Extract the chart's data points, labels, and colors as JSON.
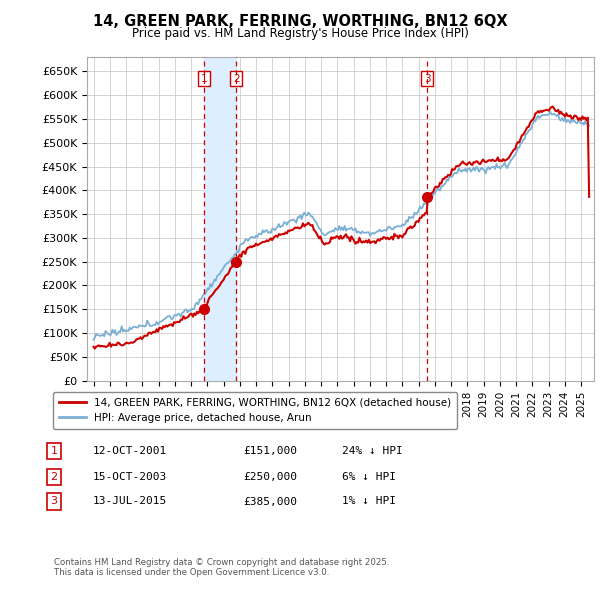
{
  "title1": "14, GREEN PARK, FERRING, WORTHING, BN12 6QX",
  "title2": "Price paid vs. HM Land Registry's House Price Index (HPI)",
  "ylabel_ticks": [
    "£0",
    "£50K",
    "£100K",
    "£150K",
    "£200K",
    "£250K",
    "£300K",
    "£350K",
    "£400K",
    "£450K",
    "£500K",
    "£550K",
    "£600K",
    "£650K"
  ],
  "ytick_values": [
    0,
    50000,
    100000,
    150000,
    200000,
    250000,
    300000,
    350000,
    400000,
    450000,
    500000,
    550000,
    600000,
    650000
  ],
  "ylim": [
    0,
    680000
  ],
  "xlim_start": 1994.6,
  "xlim_end": 2025.8,
  "sale_dates": [
    2001.79,
    2003.79,
    2015.54
  ],
  "sale_prices": [
    151000,
    250000,
    385000
  ],
  "sale_labels": [
    "1",
    "2",
    "3"
  ],
  "vline_color": "#cc0000",
  "hpi_color": "#7bafd4",
  "paid_color": "#cc0000",
  "shade_color": "#ddeeff",
  "background_color": "#ffffff",
  "grid_color": "#cccccc",
  "legend_label_red": "14, GREEN PARK, FERRING, WORTHING, BN12 6QX (detached house)",
  "legend_label_blue": "HPI: Average price, detached house, Arun",
  "table_rows": [
    {
      "label": "1",
      "date": "12-OCT-2001",
      "price": "£151,000",
      "hpi": "24% ↓ HPI"
    },
    {
      "label": "2",
      "date": "15-OCT-2003",
      "price": "£250,000",
      "hpi": "6% ↓ HPI"
    },
    {
      "label": "3",
      "date": "13-JUL-2015",
      "price": "£385,000",
      "hpi": "1% ↓ HPI"
    }
  ],
  "footnote": "Contains HM Land Registry data © Crown copyright and database right 2025.\nThis data is licensed under the Open Government Licence v3.0.",
  "xtick_years": [
    1995,
    1996,
    1997,
    1998,
    1999,
    2000,
    2001,
    2002,
    2003,
    2004,
    2005,
    2006,
    2007,
    2008,
    2009,
    2010,
    2011,
    2012,
    2013,
    2014,
    2015,
    2016,
    2017,
    2018,
    2019,
    2020,
    2021,
    2022,
    2023,
    2024,
    2025
  ]
}
